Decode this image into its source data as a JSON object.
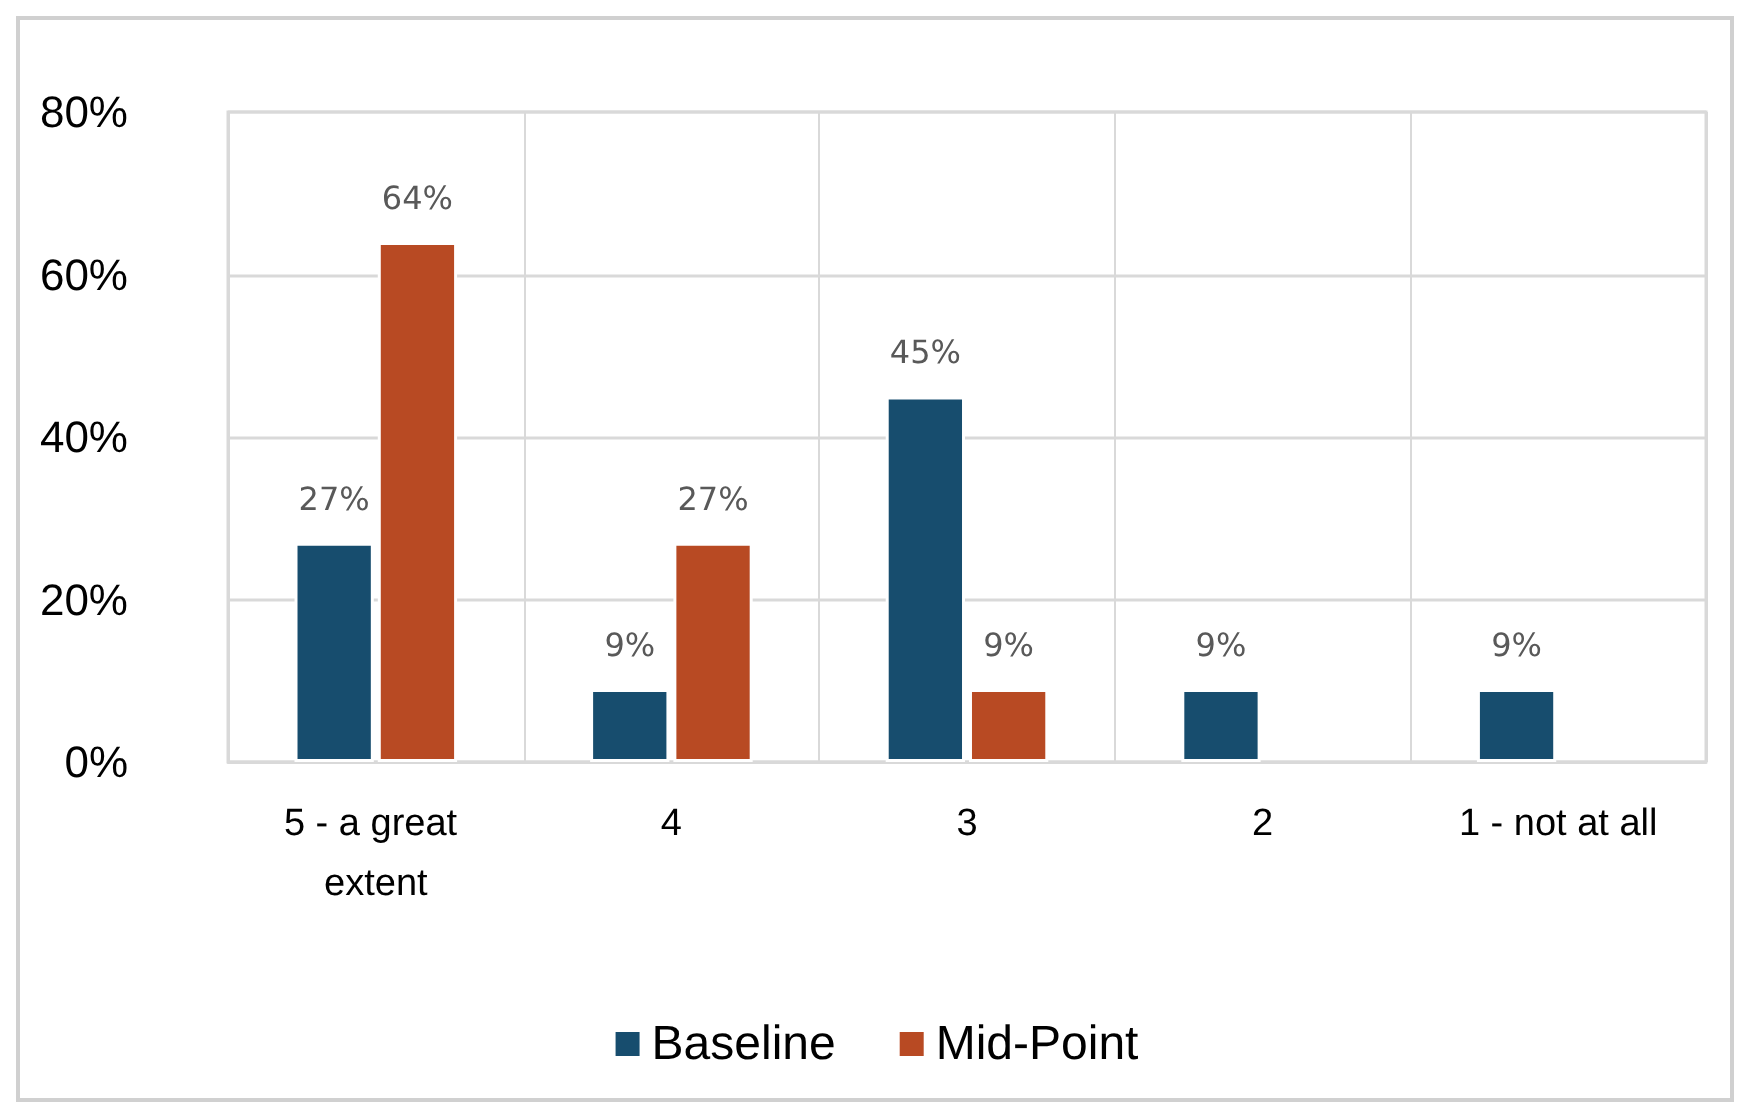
{
  "chart_data": {
    "type": "bar",
    "categories": [
      "5 - a great extent",
      "4",
      "3",
      "2",
      "1 - not at all"
    ],
    "series": [
      {
        "name": "Baseline",
        "color": "#174d6e",
        "values": [
          27,
          9,
          45,
          9,
          9
        ],
        "value_labels": [
          "27%",
          "9%",
          "45%",
          "9%",
          "9%"
        ]
      },
      {
        "name": "Mid-Point",
        "color": "#b84a23",
        "values": [
          64,
          27,
          9,
          null,
          null
        ],
        "value_labels": [
          "64%",
          "27%",
          "9%",
          null,
          null
        ]
      }
    ],
    "ylim": [
      0,
      80
    ],
    "yticks": [
      {
        "value": 0,
        "label": "0%"
      },
      {
        "value": 20,
        "label": "20%"
      },
      {
        "value": 40,
        "label": "40%"
      },
      {
        "value": 60,
        "label": "60%"
      },
      {
        "value": 80,
        "label": "80%"
      }
    ],
    "grid": true,
    "legend": "bottom"
  }
}
